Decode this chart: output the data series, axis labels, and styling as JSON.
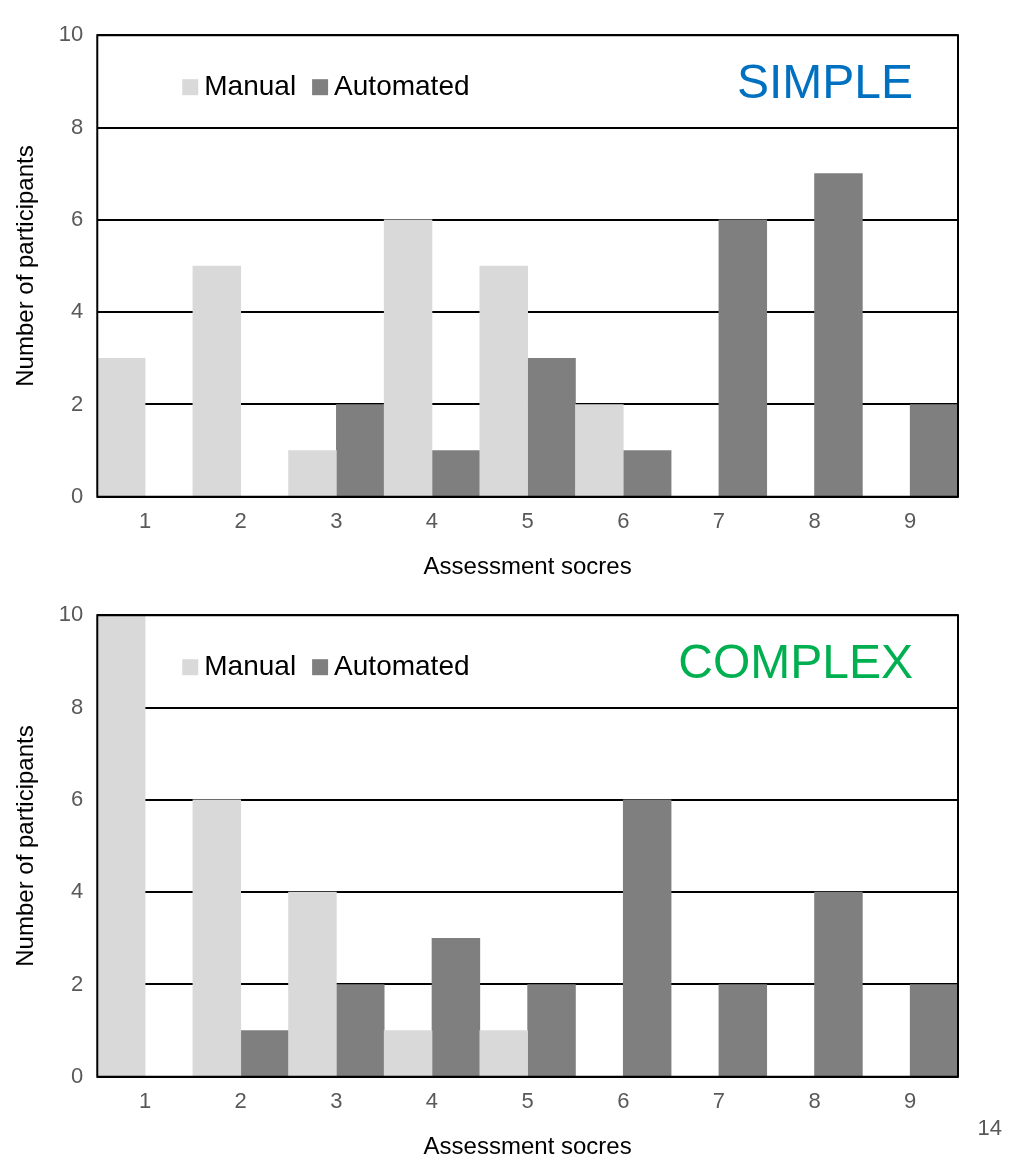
{
  "chart_data": [
    {
      "type": "bar",
      "title": "SIMPLE",
      "xlabel": "Assessment socres",
      "ylabel": "Number of participants",
      "categories": [
        "1",
        "2",
        "3",
        "4",
        "5",
        "6",
        "7",
        "8",
        "9"
      ],
      "series": [
        {
          "name": "Manual",
          "color": "#d9d9d9",
          "values": [
            3,
            5,
            1,
            6,
            5,
            2,
            0,
            0,
            0
          ]
        },
        {
          "name": "Automated",
          "color": "#7f7f7f",
          "values": [
            0,
            0,
            2,
            1,
            3,
            1,
            6,
            7,
            2
          ]
        }
      ],
      "ylim": [
        0,
        10
      ],
      "yticks": [
        0,
        2,
        4,
        6,
        8,
        10
      ],
      "grid": "y",
      "legend": "top left"
    },
    {
      "type": "bar",
      "title": "COMPLEX",
      "xlabel": "Assessment socres",
      "ylabel": "Number of participants",
      "categories": [
        "1",
        "2",
        "3",
        "4",
        "5",
        "6",
        "7",
        "8",
        "9"
      ],
      "series": [
        {
          "name": "Manual",
          "color": "#d9d9d9",
          "values": [
            10,
            6,
            4,
            1,
            1,
            0,
            0,
            0,
            0
          ]
        },
        {
          "name": "Automated",
          "color": "#7f7f7f",
          "values": [
            0,
            1,
            2,
            3,
            2,
            6,
            2,
            4,
            2
          ]
        }
      ],
      "ylim": [
        0,
        10
      ],
      "yticks": [
        0,
        2,
        4,
        6,
        8,
        10
      ],
      "grid": "y",
      "legend": "top left",
      "annotations": [
        "14"
      ]
    }
  ]
}
